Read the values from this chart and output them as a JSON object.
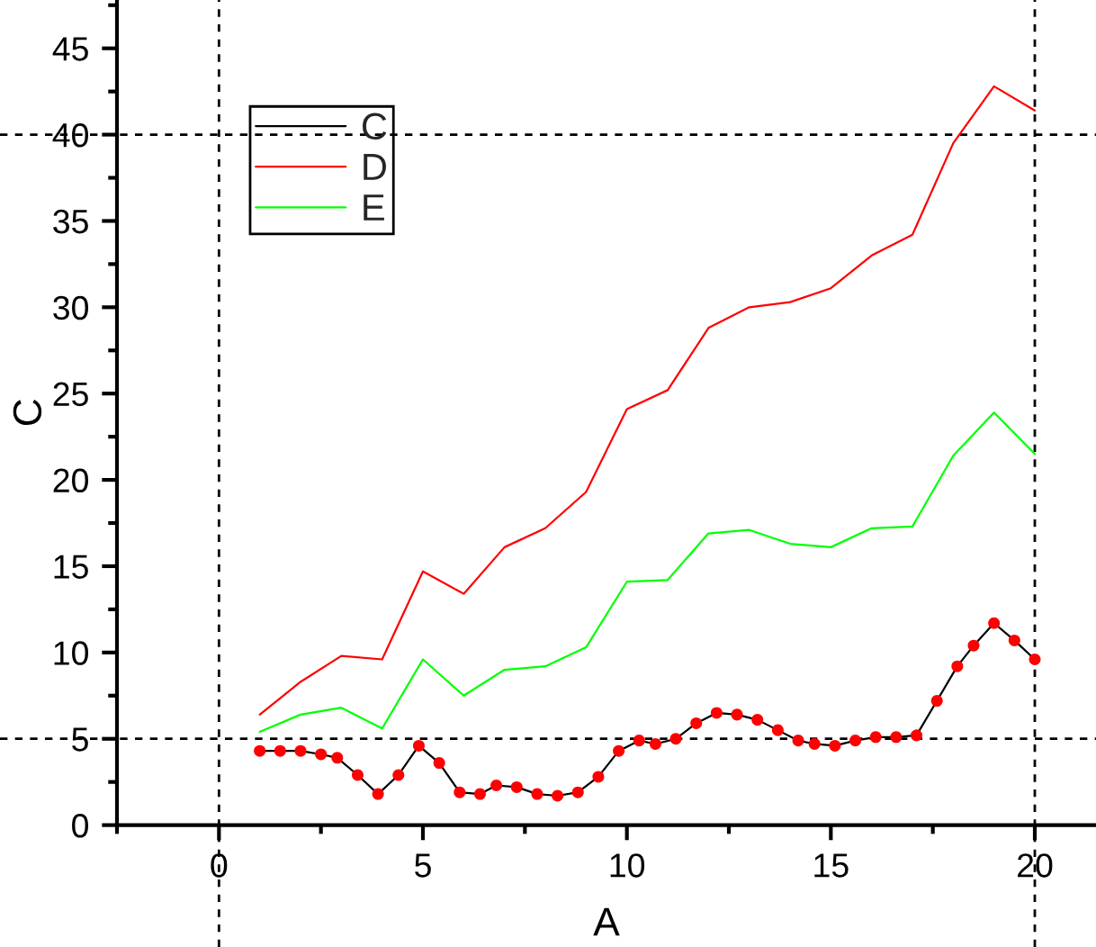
{
  "chart_data": {
    "type": "line",
    "xlabel": "A",
    "ylabel": "C",
    "xlim": [
      -2.5,
      21.5
    ],
    "xticks": [
      0,
      5,
      10,
      15,
      20
    ],
    "ylim": [
      0,
      47.8
    ],
    "yticks": [
      0,
      5,
      10,
      15,
      20,
      25,
      30,
      35,
      40,
      45
    ],
    "grid": false,
    "legend": "top left",
    "ref_lines": [
      {
        "axis": "x",
        "value": 0,
        "color": "#000000",
        "line_style": "dashed"
      },
      {
        "axis": "x",
        "value": 20,
        "color": "#000000",
        "line_style": "dashed"
      },
      {
        "axis": "y",
        "value": 5,
        "color": "#000000",
        "line_style": "dashed"
      },
      {
        "axis": "y",
        "value": 40,
        "color": "#000000",
        "line_style": "dashed"
      }
    ],
    "series": [
      {
        "name": "C",
        "color": "#000000",
        "x": [
          1.0,
          1.5,
          2.0,
          2.5,
          2.9,
          3.4,
          3.9,
          4.4,
          4.9,
          5.4,
          5.9,
          6.4,
          6.8,
          7.3,
          7.8,
          8.3,
          8.8,
          9.3,
          9.8,
          10.3,
          10.7,
          11.2,
          11.7,
          12.2,
          12.7,
          13.2,
          13.7,
          14.2,
          14.6,
          15.1,
          15.6,
          16.1,
          16.6,
          17.1,
          17.6,
          18.1,
          18.5,
          19.0,
          19.5,
          20.0
        ],
        "values": [
          4.3,
          4.3,
          4.3,
          4.1,
          3.9,
          2.9,
          1.8,
          2.9,
          4.6,
          3.6,
          1.9,
          1.8,
          2.3,
          2.2,
          1.8,
          1.7,
          1.9,
          2.8,
          4.3,
          4.9,
          4.7,
          5.0,
          5.9,
          6.5,
          6.4,
          6.1,
          5.5,
          4.9,
          4.7,
          4.6,
          4.9,
          5.1,
          5.1,
          5.2,
          7.2,
          9.2,
          10.4,
          11.7,
          10.7,
          9.6
        ]
      },
      {
        "name": "D",
        "color": "#ff0000",
        "x": [
          1,
          2,
          3,
          4,
          5,
          6,
          7,
          8,
          9,
          10,
          11,
          12,
          13,
          14,
          15,
          16,
          17,
          18,
          19,
          20
        ],
        "values": [
          6.4,
          8.3,
          9.8,
          9.6,
          14.7,
          13.4,
          16.1,
          17.2,
          19.3,
          24.1,
          25.2,
          28.8,
          30.0,
          30.3,
          31.1,
          33.0,
          34.2,
          39.5,
          42.8,
          41.4
        ]
      },
      {
        "name": "E",
        "color": "#00ff00",
        "x": [
          1,
          2,
          3,
          4,
          5,
          6,
          7,
          8,
          9,
          10,
          11,
          12,
          13,
          14,
          15,
          16,
          17,
          18,
          19,
          20
        ],
        "values": [
          5.4,
          6.4,
          6.8,
          5.6,
          9.6,
          7.5,
          9.0,
          9.2,
          10.3,
          14.1,
          14.2,
          16.9,
          17.1,
          16.3,
          16.1,
          17.2,
          17.3,
          21.4,
          23.9,
          21.5
        ]
      },
      {
        "type": "scatter",
        "color": "#ff0000",
        "marker": "circle",
        "x": [
          1.0,
          1.5,
          2.0,
          2.5,
          2.9,
          3.4,
          3.9,
          4.4,
          4.9,
          5.4,
          5.9,
          6.4,
          6.8,
          7.3,
          7.8,
          8.3,
          8.8,
          9.3,
          9.8,
          10.3,
          10.7,
          11.2,
          11.7,
          12.2,
          12.7,
          13.2,
          13.7,
          14.2,
          14.6,
          15.1,
          15.6,
          16.1,
          16.6,
          17.1,
          17.6,
          18.1,
          18.5,
          19.0,
          19.5,
          20.0
        ],
        "values": [
          4.3,
          4.3,
          4.3,
          4.1,
          3.9,
          2.9,
          1.8,
          2.9,
          4.6,
          3.6,
          1.9,
          1.8,
          2.3,
          2.2,
          1.8,
          1.7,
          1.9,
          2.8,
          4.3,
          4.9,
          4.7,
          5.0,
          5.9,
          6.5,
          6.4,
          6.1,
          5.5,
          4.9,
          4.7,
          4.6,
          4.9,
          5.1,
          5.1,
          5.2,
          7.2,
          9.2,
          10.4,
          11.7,
          10.7,
          9.6
        ]
      }
    ]
  }
}
